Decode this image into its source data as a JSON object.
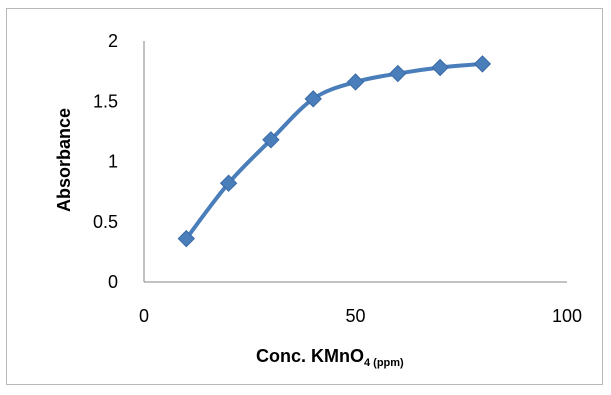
{
  "chart_data": {
    "type": "scatter",
    "x": [
      10,
      20,
      30,
      40,
      50,
      60,
      70,
      80
    ],
    "y": [
      0.36,
      0.82,
      1.18,
      1.52,
      1.66,
      1.73,
      1.78,
      1.81
    ],
    "smooth_line": true,
    "marker": "diamond",
    "xlim": [
      0,
      100
    ],
    "ylim": [
      0,
      2
    ],
    "xticks": [
      "0",
      "50",
      "100"
    ],
    "yticks": [
      "0",
      "0.5",
      "1",
      "1.5",
      "2"
    ],
    "xlabel": "Conc. KMnO",
    "xlabel_subscript": "4 (ppm)",
    "ylabel": "Absorbance",
    "grid": false,
    "colors": {
      "series": "#4a7ebb",
      "axis": "#868686"
    }
  }
}
